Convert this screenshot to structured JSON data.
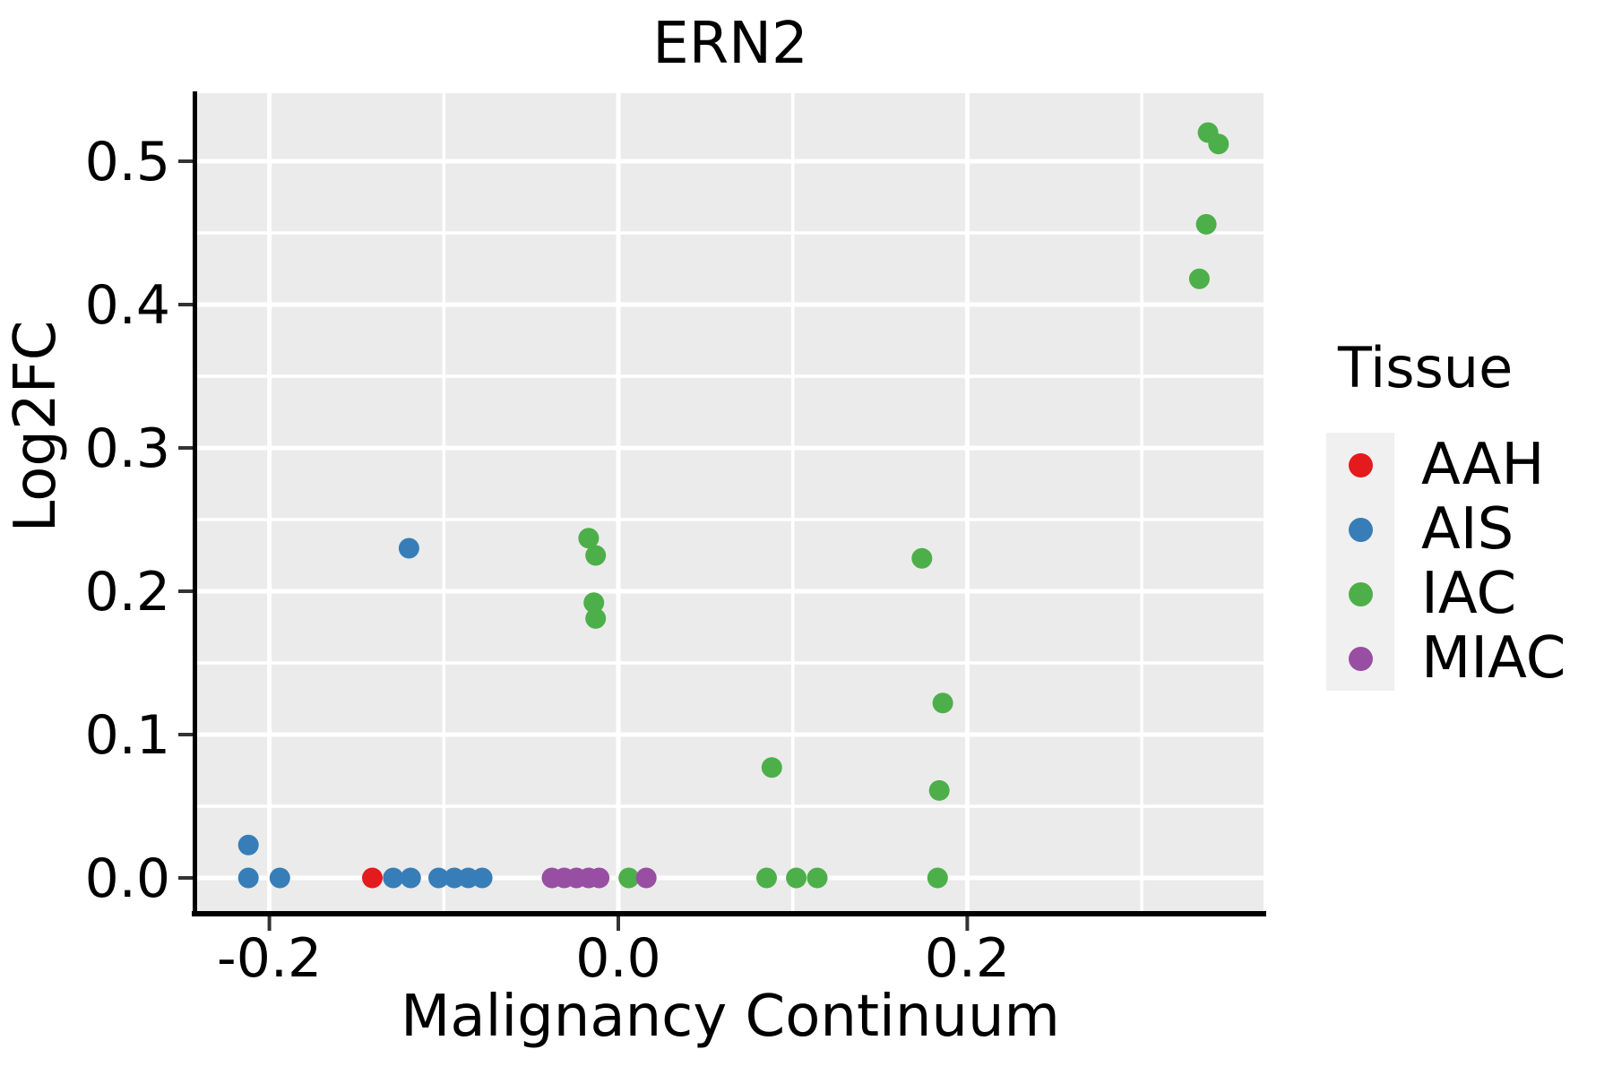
{
  "title": "ERN2",
  "panel": {
    "bg": "#EBEBEB",
    "grid_color": "#FFFFFF",
    "axis_line_color": "#000000",
    "tick_color": "#333333"
  },
  "axes": {
    "x": {
      "label": "Malignancy Continuum",
      "range": [
        -0.241,
        0.371
      ],
      "ticks": [
        {
          "value": -0.2,
          "label": "-0.2"
        },
        {
          "value": 0.0,
          "label": "0.0"
        },
        {
          "value": 0.2,
          "label": "0.2"
        }
      ],
      "minor": [
        -0.1,
        0.1,
        0.3
      ]
    },
    "y": {
      "label": "Log2FC",
      "range": [
        -0.025,
        0.5475
      ],
      "ticks": [
        {
          "value": 0.0,
          "label": "0.0"
        },
        {
          "value": 0.1,
          "label": "0.1"
        },
        {
          "value": 0.2,
          "label": "0.2"
        },
        {
          "value": 0.3,
          "label": "0.3"
        },
        {
          "value": 0.4,
          "label": "0.4"
        },
        {
          "value": 0.5,
          "label": "0.5"
        }
      ],
      "minor": [
        0.05,
        0.15,
        0.25,
        0.35,
        0.45
      ]
    }
  },
  "legend": {
    "title": "Tissue",
    "items": [
      {
        "label": "AAH",
        "color": "#E41A1C"
      },
      {
        "label": "AIS",
        "color": "#377EB8"
      },
      {
        "label": "IAC",
        "color": "#4DAF4A"
      },
      {
        "label": "MIAC",
        "color": "#984EA3"
      }
    ]
  },
  "chart_data": {
    "type": "scatter",
    "title": "ERN2",
    "xlabel": "Malignancy Continuum",
    "ylabel": "Log2FC",
    "xlim": [
      -0.241,
      0.371
    ],
    "ylim": [
      -0.025,
      0.5475
    ],
    "grid": true,
    "legend_position": "right",
    "point_radius_px": 11.5,
    "series": [
      {
        "name": "AAH",
        "color": "#E41A1C",
        "points": [
          [
            -0.141,
            0.0
          ]
        ]
      },
      {
        "name": "AIS",
        "color": "#377EB8",
        "points": [
          [
            -0.212,
            0.023
          ],
          [
            -0.212,
            0.0
          ],
          [
            -0.194,
            0.0
          ],
          [
            -0.129,
            0.0
          ],
          [
            -0.119,
            0.0
          ],
          [
            -0.103,
            0.0
          ],
          [
            -0.094,
            0.0
          ],
          [
            -0.086,
            0.0
          ],
          [
            -0.078,
            0.0
          ],
          [
            -0.12,
            0.23
          ]
        ]
      },
      {
        "name": "IAC",
        "color": "#4DAF4A",
        "points": [
          [
            -0.017,
            0.237
          ],
          [
            -0.013,
            0.225
          ],
          [
            -0.014,
            0.192
          ],
          [
            -0.013,
            0.181
          ],
          [
            0.006,
            0.0
          ],
          [
            0.085,
            0.0
          ],
          [
            0.088,
            0.077
          ],
          [
            0.102,
            0.0
          ],
          [
            0.114,
            0.0
          ],
          [
            0.174,
            0.223
          ],
          [
            0.186,
            0.122
          ],
          [
            0.184,
            0.061
          ],
          [
            0.183,
            0.0
          ],
          [
            0.338,
            0.52
          ],
          [
            0.344,
            0.512
          ],
          [
            0.337,
            0.456
          ],
          [
            0.333,
            0.418
          ]
        ]
      },
      {
        "name": "MIAC",
        "color": "#984EA3",
        "points": [
          [
            -0.038,
            0.0
          ],
          [
            -0.031,
            0.0
          ],
          [
            -0.024,
            0.0
          ],
          [
            -0.017,
            0.0
          ],
          [
            -0.011,
            0.0
          ],
          [
            0.016,
            0.0
          ]
        ]
      }
    ]
  }
}
